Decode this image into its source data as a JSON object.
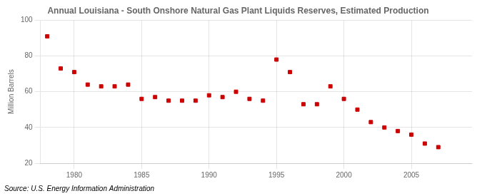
{
  "chart_data": {
    "type": "scatter",
    "title": "Annual Louisiana - South Onshore Natural Gas Plant Liquids Reserves, Estimated Production",
    "ylabel": "Million Barrels",
    "annotation": "Source: U.S. Energy Information Administration",
    "x": [
      1978,
      1979,
      1980,
      1981,
      1982,
      1983,
      1984,
      1985,
      1986,
      1987,
      1988,
      1989,
      1990,
      1991,
      1992,
      1993,
      1994,
      1995,
      1996,
      1997,
      1998,
      1999,
      2000,
      2001,
      2002,
      2003,
      2004,
      2005,
      2006,
      2007
    ],
    "values": [
      91,
      73,
      71,
      64,
      63,
      63,
      64,
      56,
      57,
      55,
      55,
      55,
      58,
      57,
      60,
      56,
      55,
      78,
      71,
      53,
      53,
      63,
      56,
      50,
      43,
      40,
      38,
      36,
      31,
      29
    ],
    "color": "#cc0000",
    "marker": "square",
    "xlim": [
      1977.5,
      2009.5
    ],
    "xticks": [
      1980,
      1985,
      1990,
      1995,
      2000,
      2005
    ],
    "ylim": [
      20,
      100
    ],
    "yticks": [
      20,
      40,
      60,
      80,
      100
    ],
    "grid": true
  }
}
